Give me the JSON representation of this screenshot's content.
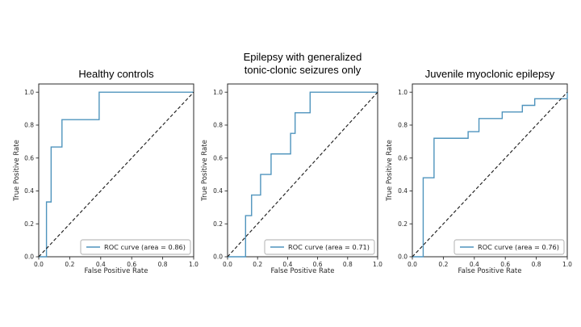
{
  "figure": {
    "background": "#ffffff",
    "curve_color": "#4f94bd",
    "diagonal_color": "#1f1f1f",
    "axis_color": "#2a2a2a",
    "text_color": "#262626",
    "title_color": "#000000",
    "legend_border_color": "#ababab",
    "legend_fill": "#ffffff"
  },
  "chart_data": [
    {
      "type": "line",
      "title": "Healthy controls",
      "xlabel": "False Positive Rate",
      "ylabel": "True Positive Rate",
      "xlim": [
        0.0,
        1.0
      ],
      "ylim": [
        0.0,
        1.05
      ],
      "xticks": [
        "0.0",
        "0.2",
        "0.4",
        "0.6",
        "0.8",
        "1.0"
      ],
      "yticks": [
        "0.0",
        "0.2",
        "0.4",
        "0.6",
        "0.8",
        "1.0"
      ],
      "grid": false,
      "legend_position": "lower right",
      "legend_label": "ROC curve (area = 0.86)",
      "auc": 0.86,
      "series": [
        {
          "name": "ROC curve",
          "style": "solid",
          "x": [
            0,
            0.05,
            0.05,
            0.08,
            0.08,
            0.15,
            0.15,
            0.39,
            0.39,
            1.0
          ],
          "y": [
            0,
            0,
            0.333,
            0.333,
            0.667,
            0.667,
            0.833,
            0.833,
            1.0,
            1.0
          ]
        },
        {
          "name": "chance diagonal",
          "style": "dashed",
          "x": [
            0,
            1.0
          ],
          "y": [
            0,
            1.0
          ]
        }
      ]
    },
    {
      "type": "line",
      "title": "Epilepsy with generalized\ntonic-clonic seizures only",
      "xlabel": "False Positive Rate",
      "ylabel": "True Positive Rate",
      "xlim": [
        0.0,
        1.0
      ],
      "ylim": [
        0.0,
        1.05
      ],
      "xticks": [
        "0.0",
        "0.2",
        "0.4",
        "0.6",
        "0.8",
        "1.0"
      ],
      "yticks": [
        "0.0",
        "0.2",
        "0.4",
        "0.6",
        "0.8",
        "1.0"
      ],
      "grid": false,
      "legend_position": "lower right",
      "legend_label": "ROC curve (area = 0.71)",
      "auc": 0.71,
      "series": [
        {
          "name": "ROC curve",
          "style": "solid",
          "x": [
            0,
            0.12,
            0.12,
            0.16,
            0.16,
            0.22,
            0.22,
            0.29,
            0.29,
            0.42,
            0.42,
            0.45,
            0.45,
            0.55,
            0.55,
            1.0
          ],
          "y": [
            0,
            0,
            0.25,
            0.25,
            0.375,
            0.375,
            0.5,
            0.5,
            0.625,
            0.625,
            0.75,
            0.75,
            0.875,
            0.875,
            1.0,
            1.0
          ]
        },
        {
          "name": "chance diagonal",
          "style": "dashed",
          "x": [
            0,
            1.0
          ],
          "y": [
            0,
            1.0
          ]
        }
      ]
    },
    {
      "type": "line",
      "title": "Juvenile myoclonic epilepsy",
      "xlabel": "False Positive Rate",
      "ylabel": "True Positive Rate",
      "xlim": [
        0.0,
        1.0
      ],
      "ylim": [
        0.0,
        1.05
      ],
      "xticks": [
        "0.0",
        "0.2",
        "0.4",
        "0.6",
        "0.8",
        "1.0"
      ],
      "yticks": [
        "0.0",
        "0.2",
        "0.4",
        "0.6",
        "0.8",
        "1.0"
      ],
      "grid": false,
      "legend_position": "lower right",
      "legend_label": "ROC curve (area = 0.76)",
      "auc": 0.76,
      "series": [
        {
          "name": "ROC curve",
          "style": "solid",
          "x": [
            0,
            0.07,
            0.07,
            0.14,
            0.14,
            0.36,
            0.36,
            0.43,
            0.43,
            0.58,
            0.58,
            0.71,
            0.71,
            0.79,
            0.79,
            1.0,
            1.0
          ],
          "y": [
            0,
            0,
            0.48,
            0.48,
            0.72,
            0.72,
            0.76,
            0.76,
            0.84,
            0.84,
            0.88,
            0.88,
            0.92,
            0.92,
            0.96,
            0.96,
            1.0
          ]
        },
        {
          "name": "chance diagonal",
          "style": "dashed",
          "x": [
            0,
            1.0
          ],
          "y": [
            0,
            1.0
          ]
        }
      ]
    }
  ]
}
